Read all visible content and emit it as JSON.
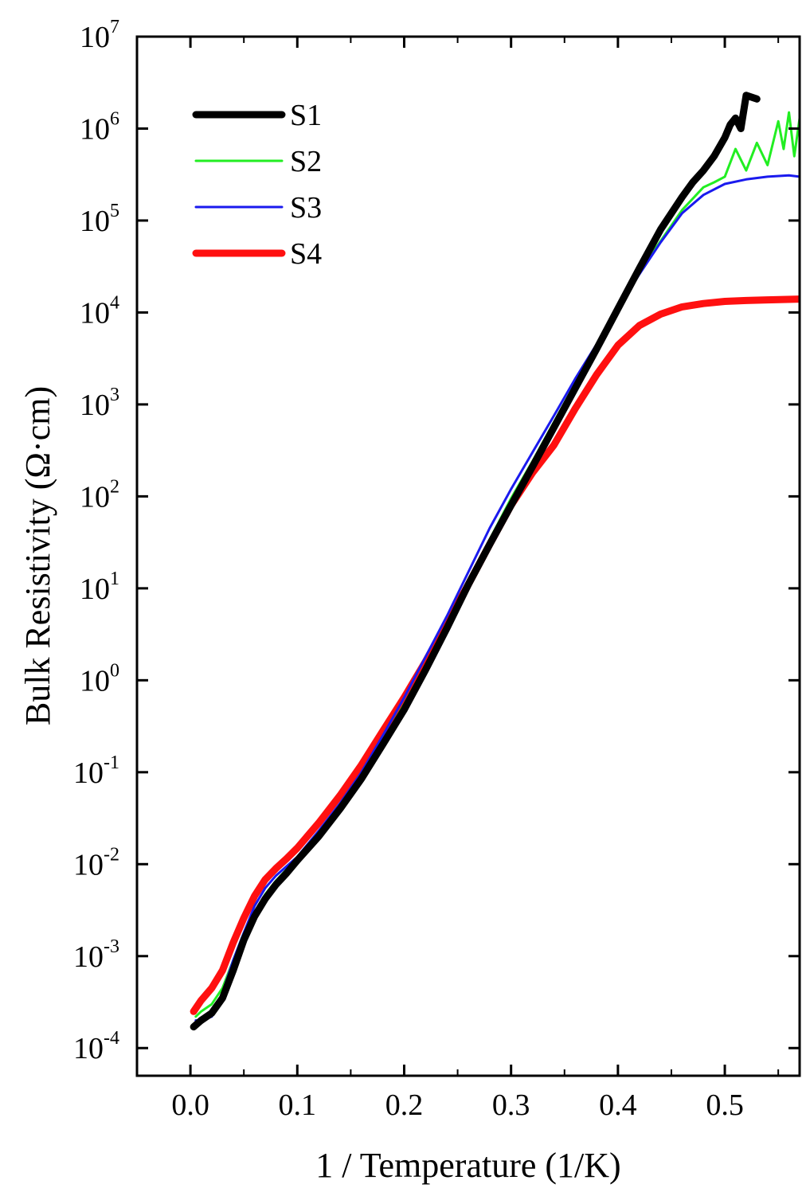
{
  "chart_data": {
    "type": "line",
    "title": "",
    "xlabel": "1 / Temperature (1/K)",
    "ylabel": "Bulk Resistivity (Ω·cm)",
    "x_scale": "linear",
    "y_scale": "log",
    "xlim": [
      -0.05,
      0.57
    ],
    "ylim": [
      5e-05,
      10000000
    ],
    "grid": false,
    "legend_position": "top-left",
    "x_ticks": [
      {
        "value": 0.0,
        "label": "0.0"
      },
      {
        "value": 0.1,
        "label": "0.1"
      },
      {
        "value": 0.2,
        "label": "0.2"
      },
      {
        "value": 0.3,
        "label": "0.3"
      },
      {
        "value": 0.4,
        "label": "0.4"
      },
      {
        "value": 0.5,
        "label": "0.5"
      }
    ],
    "y_ticks": [
      {
        "exp": -4,
        "base": "10",
        "sup": "-4"
      },
      {
        "exp": -3,
        "base": "10",
        "sup": "-3"
      },
      {
        "exp": -2,
        "base": "10",
        "sup": "-2"
      },
      {
        "exp": -1,
        "base": "10",
        "sup": "-1"
      },
      {
        "exp": 0,
        "base": "10",
        "sup": "0"
      },
      {
        "exp": 1,
        "base": "10",
        "sup": "1"
      },
      {
        "exp": 2,
        "base": "10",
        "sup": "2"
      },
      {
        "exp": 3,
        "base": "10",
        "sup": "3"
      },
      {
        "exp": 4,
        "base": "10",
        "sup": "4"
      },
      {
        "exp": 5,
        "base": "10",
        "sup": "5"
      },
      {
        "exp": 6,
        "base": "10",
        "sup": "6"
      },
      {
        "exp": 7,
        "base": "10",
        "sup": "7"
      }
    ],
    "series": [
      {
        "name": "S1",
        "color": "#000000",
        "line_width": 9,
        "x": [
          0.003,
          0.01,
          0.02,
          0.03,
          0.04,
          0.05,
          0.06,
          0.07,
          0.08,
          0.09,
          0.1,
          0.12,
          0.14,
          0.16,
          0.18,
          0.2,
          0.22,
          0.24,
          0.26,
          0.28,
          0.3,
          0.32,
          0.34,
          0.36,
          0.38,
          0.4,
          0.42,
          0.44,
          0.46,
          0.47,
          0.48,
          0.49,
          0.5,
          0.505,
          0.51,
          0.515,
          0.52,
          0.53
        ],
        "y": [
          0.00017,
          0.0002,
          0.00024,
          0.00035,
          0.0007,
          0.0015,
          0.0027,
          0.0042,
          0.006,
          0.008,
          0.011,
          0.02,
          0.04,
          0.085,
          0.2,
          0.48,
          1.3,
          3.7,
          11,
          30,
          80,
          210,
          560,
          1500,
          4000,
          11000,
          30000,
          80000,
          180000,
          260000,
          350000,
          500000,
          800000,
          1100000,
          1300000,
          1000000,
          2300000,
          2100000
        ]
      },
      {
        "name": "S2",
        "color": "#22ee22",
        "line_width": 3,
        "x": [
          0.005,
          0.01,
          0.02,
          0.03,
          0.04,
          0.05,
          0.06,
          0.07,
          0.08,
          0.09,
          0.1,
          0.12,
          0.14,
          0.16,
          0.18,
          0.2,
          0.22,
          0.24,
          0.26,
          0.28,
          0.3,
          0.32,
          0.34,
          0.36,
          0.38,
          0.4,
          0.42,
          0.44,
          0.46,
          0.48,
          0.49,
          0.5,
          0.51,
          0.52,
          0.53,
          0.54,
          0.55,
          0.555,
          0.56,
          0.565,
          0.57
        ],
        "y": [
          0.00022,
          0.00025,
          0.0003,
          0.00045,
          0.0009,
          0.0018,
          0.003,
          0.0047,
          0.0066,
          0.0088,
          0.012,
          0.022,
          0.045,
          0.095,
          0.22,
          0.55,
          1.45,
          4.0,
          12,
          34,
          95,
          240,
          640,
          1700,
          4400,
          11500,
          28000,
          60000,
          130000,
          230000,
          260000,
          300000,
          600000,
          350000,
          700000,
          400000,
          1200000,
          600000,
          1500000,
          500000,
          1300000
        ]
      },
      {
        "name": "S3",
        "color": "#1a1aee",
        "line_width": 3,
        "x": [
          0.005,
          0.01,
          0.02,
          0.03,
          0.04,
          0.05,
          0.06,
          0.07,
          0.08,
          0.09,
          0.1,
          0.12,
          0.14,
          0.16,
          0.18,
          0.2,
          0.22,
          0.24,
          0.26,
          0.28,
          0.3,
          0.32,
          0.34,
          0.36,
          0.38,
          0.4,
          0.42,
          0.44,
          0.46,
          0.48,
          0.5,
          0.52,
          0.54,
          0.56,
          0.57
        ],
        "y": [
          0.0002,
          0.0002,
          0.00022,
          0.0004,
          0.0009,
          0.0018,
          0.0035,
          0.0055,
          0.0075,
          0.0095,
          0.012,
          0.023,
          0.046,
          0.1,
          0.25,
          0.65,
          1.8,
          5.0,
          15,
          45,
          120,
          300,
          750,
          1900,
          4500,
          11000,
          26000,
          58000,
          120000,
          190000,
          250000,
          280000,
          300000,
          310000,
          300000
        ]
      },
      {
        "name": "S4",
        "color": "#ff1010",
        "line_width": 9,
        "x": [
          0.003,
          0.01,
          0.02,
          0.03,
          0.04,
          0.05,
          0.06,
          0.07,
          0.08,
          0.09,
          0.1,
          0.12,
          0.14,
          0.16,
          0.18,
          0.2,
          0.22,
          0.24,
          0.26,
          0.28,
          0.3,
          0.32,
          0.34,
          0.36,
          0.38,
          0.4,
          0.42,
          0.44,
          0.46,
          0.48,
          0.5,
          0.52,
          0.54,
          0.57
        ],
        "y": [
          0.00025,
          0.00033,
          0.00045,
          0.0007,
          0.0014,
          0.0026,
          0.0045,
          0.0068,
          0.009,
          0.0115,
          0.015,
          0.028,
          0.056,
          0.12,
          0.28,
          0.65,
          1.6,
          4.2,
          11,
          30,
          80,
          180,
          360,
          900,
          2100,
          4400,
          7200,
          9600,
          11500,
          12500,
          13200,
          13500,
          13700,
          14000
        ]
      }
    ]
  }
}
